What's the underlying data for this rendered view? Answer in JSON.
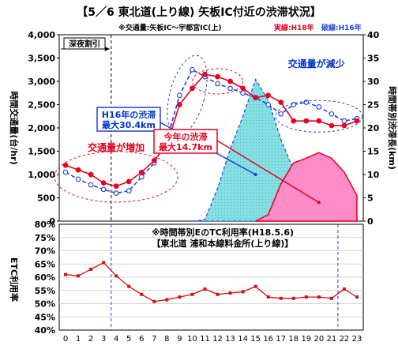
{
  "title": "【5／6 東北道(上り線) 矢板IC付近の渋滞状況】",
  "colors": {
    "h18": "#e8001e",
    "h16": "#1f3fe0",
    "h18_fill": "#ff8cc6",
    "h16_fill": "#86dfe3",
    "etc_line": "#d41010",
    "title_text": "#000000",
    "annotation_blue": "#0033cc",
    "annotation_red": "#e8001e"
  },
  "top_chart": {
    "subtitle_prefix": "※交通量:矢板IC～宇都宮IC(上)",
    "legend_h18": "実線:H18年",
    "legend_h16": "破線:H16年",
    "ylabel_left": "時間交通量(台/hr)",
    "ylabel_right": "時間帯別渋滞長(km)",
    "night_discount_label": "深夜割引",
    "annotations": {
      "traffic_increase": "交通量が増加",
      "traffic_decrease": "交通量が減少",
      "h16_jam_line1": "H16年の渋滞",
      "h16_jam_line2": "最大30.4km",
      "h18_jam_line1": "今年の渋滞",
      "h18_jam_line2": "最大14.7km"
    }
  },
  "bottom_chart": {
    "ylabel": "ETC利用率",
    "note_line1": "※時間帯別EのTC利用率(H18.5.6)",
    "note_line2": "【東北道 浦和本線料金所(上り線)】"
  },
  "chart_data": [
    {
      "type": "line",
      "title": "【5／6 東北道(上り線) 矢板IC付近の渋滞状況】",
      "xlabel": "",
      "ylabel": "時間交通量(台/hr)",
      "y2label": "時間帯別渋滞長(km)",
      "categories": [
        "0",
        "1",
        "2",
        "3",
        "4",
        "5",
        "6",
        "7",
        "8",
        "9",
        "10",
        "11",
        "12",
        "13",
        "14",
        "15",
        "16",
        "17",
        "18",
        "19",
        "20",
        "21",
        "22",
        "23"
      ],
      "ylim": [
        0,
        4000
      ],
      "yticks": [
        "0",
        "500",
        "1,000",
        "1,500",
        "2,000",
        "2,500",
        "3,000",
        "3,500",
        "4,000"
      ],
      "y2lim": [
        0,
        40
      ],
      "y2ticks": [
        "0",
        "5",
        "10",
        "15",
        "20",
        "25",
        "30",
        "35",
        "40"
      ],
      "night_discount_hours": [
        0,
        4
      ],
      "series": [
        {
          "name": "実線:H18年",
          "kind": "traffic",
          "style": "solid",
          "values": [
            1200,
            1100,
            1000,
            820,
            750,
            850,
            1050,
            1300,
            1650,
            2500,
            2850,
            3150,
            3100,
            3000,
            2850,
            2650,
            2700,
            2550,
            2150,
            2150,
            2150,
            2050,
            2050,
            2150
          ]
        },
        {
          "name": "破線:H16年",
          "kind": "traffic",
          "style": "dashed",
          "values": [
            1050,
            900,
            780,
            680,
            600,
            650,
            950,
            1250,
            1750,
            2700,
            3250,
            3100,
            2950,
            2850,
            2750,
            2650,
            2500,
            2300,
            2500,
            2550,
            2450,
            2300,
            2150,
            2200
          ]
        },
        {
          "name": "実線:H18年",
          "kind": "congestion_km",
          "style": "area",
          "values": [
            0,
            0,
            0,
            0,
            0,
            0,
            0,
            0,
            0,
            0,
            0,
            0,
            0,
            0,
            0,
            0,
            1.4,
            8.0,
            12.5,
            13.5,
            14.7,
            13.5,
            10.5,
            5.5
          ]
        },
        {
          "name": "破線:H16年",
          "kind": "congestion_km",
          "style": "area",
          "values": [
            0,
            0,
            0,
            0,
            0,
            0,
            0,
            0,
            0,
            0,
            0,
            0.3,
            7.0,
            15.5,
            22.5,
            30.4,
            26.0,
            17.5,
            11.0,
            6.5,
            2.5,
            0,
            0,
            0
          ]
        }
      ]
    },
    {
      "type": "line",
      "title": "※時間帯別EのTC利用率(H18.5.6)",
      "xlabel": "",
      "ylabel": "ETC利用率",
      "categories": [
        "0",
        "1",
        "2",
        "3",
        "4",
        "5",
        "6",
        "7",
        "8",
        "9",
        "10",
        "11",
        "12",
        "13",
        "14",
        "15",
        "16",
        "17",
        "18",
        "19",
        "20",
        "21",
        "22",
        "23"
      ],
      "ylim": [
        40,
        80
      ],
      "yticks": [
        "40%",
        "45%",
        "50%",
        "55%",
        "60%",
        "65%",
        "70%",
        "75%",
        "80%"
      ],
      "series": [
        {
          "name": "",
          "values": [
            61.0,
            60.5,
            63.0,
            65.5,
            60.5,
            56.5,
            53.5,
            50.8,
            51.5,
            52.5,
            53.5,
            55.5,
            53.5,
            54.0,
            54.5,
            56.5,
            52.5,
            52.0,
            52.0,
            52.5,
            52.5,
            52.0,
            55.5,
            52.5
          ]
        }
      ]
    }
  ]
}
